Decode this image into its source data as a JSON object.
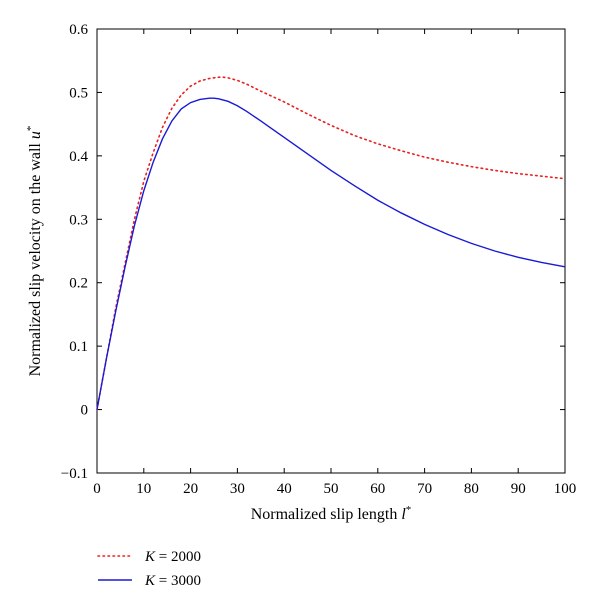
{
  "chart_data": {
    "type": "line",
    "xlabel": "Normalized slip length",
    "xlabel_symbol": "l",
    "ylabel": "Normalized slip velocity on the wall",
    "ylabel_symbol": "u",
    "superscript": "*",
    "xlim": [
      0,
      100
    ],
    "ylim": [
      -0.1,
      0.6
    ],
    "xticks": [
      "0",
      "10",
      "20",
      "30",
      "40",
      "50",
      "60",
      "70",
      "80",
      "90",
      "100"
    ],
    "yticks": [
      "−0.1",
      "0",
      "0.1",
      "0.2",
      "0.3",
      "0.4",
      "0.5",
      "0.6"
    ],
    "grid": false,
    "legend_position": "below",
    "series": [
      {
        "name_prefix": "K",
        "name_value": "= 2000",
        "style": "dotted",
        "color": "#e8211f",
        "x": [
          0,
          2,
          4,
          6,
          8,
          10,
          12,
          14,
          16,
          18,
          20,
          22,
          24,
          26,
          27,
          28,
          30,
          32,
          35,
          40,
          45,
          50,
          55,
          60,
          65,
          70,
          75,
          80,
          85,
          90,
          95,
          100
        ],
        "y": [
          0.0,
          0.08,
          0.16,
          0.23,
          0.3,
          0.36,
          0.405,
          0.445,
          0.475,
          0.496,
          0.51,
          0.518,
          0.522,
          0.524,
          0.524,
          0.523,
          0.519,
          0.513,
          0.502,
          0.485,
          0.466,
          0.448,
          0.432,
          0.419,
          0.408,
          0.398,
          0.39,
          0.383,
          0.377,
          0.372,
          0.368,
          0.364
        ]
      },
      {
        "name_prefix": "K",
        "name_value": "= 3000",
        "style": "solid",
        "color": "#1a1ad6",
        "x": [
          0,
          2,
          4,
          6,
          8,
          10,
          12,
          14,
          16,
          18,
          20,
          22,
          24,
          25,
          26,
          28,
          30,
          32,
          35,
          40,
          45,
          50,
          55,
          60,
          65,
          70,
          75,
          80,
          85,
          90,
          95,
          100
        ],
        "y": [
          0.0,
          0.08,
          0.155,
          0.225,
          0.29,
          0.345,
          0.39,
          0.427,
          0.455,
          0.474,
          0.484,
          0.489,
          0.491,
          0.491,
          0.49,
          0.486,
          0.479,
          0.47,
          0.455,
          0.429,
          0.403,
          0.377,
          0.353,
          0.33,
          0.31,
          0.292,
          0.276,
          0.262,
          0.25,
          0.24,
          0.232,
          0.225
        ]
      }
    ]
  }
}
